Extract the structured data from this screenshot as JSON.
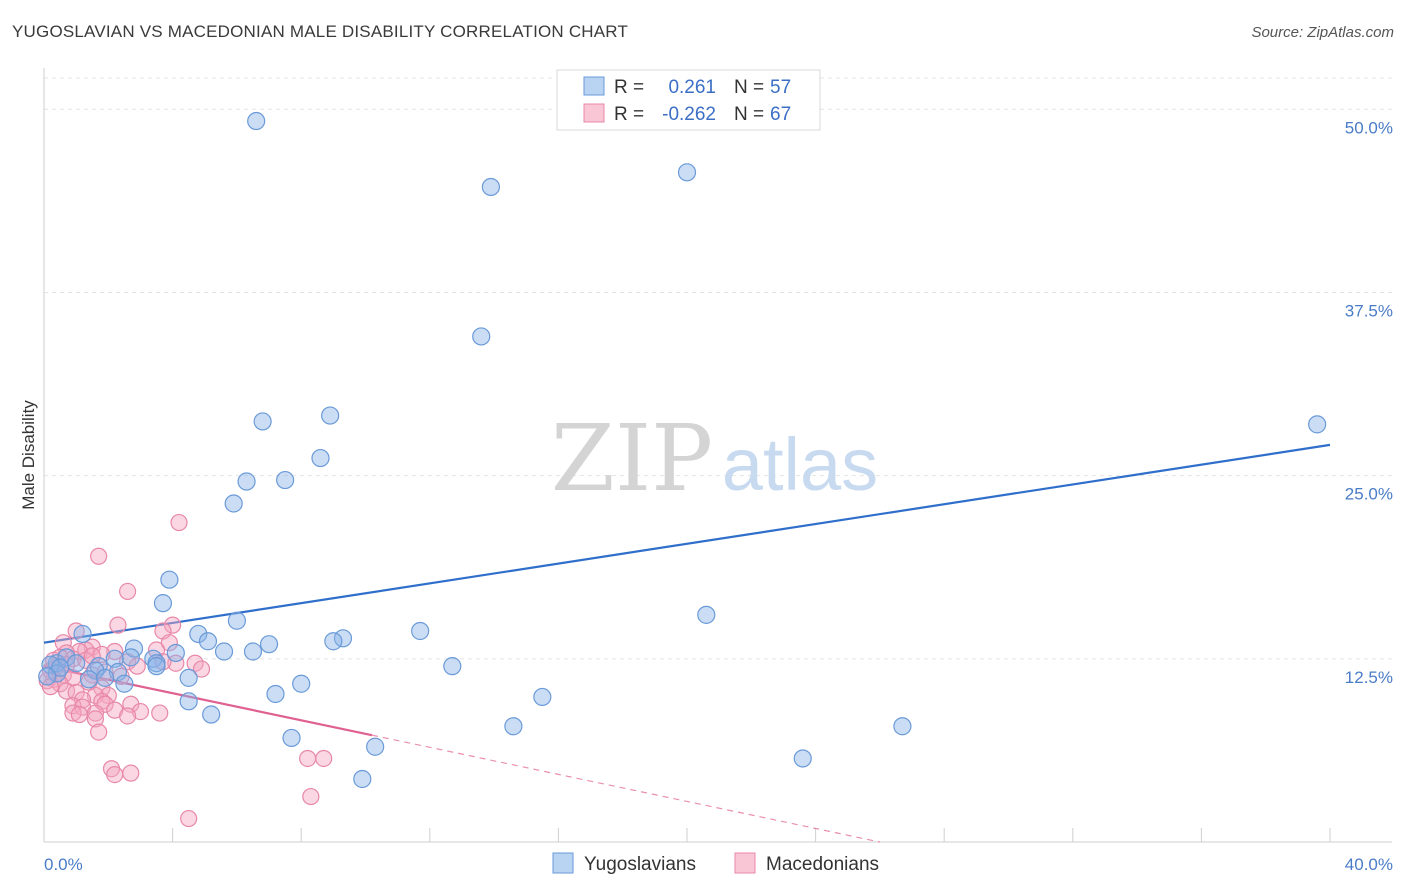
{
  "header": {
    "title": "YUGOSLAVIAN VS MACEDONIAN MALE DISABILITY CORRELATION CHART",
    "source": "Source: ZipAtlas.com"
  },
  "watermark": {
    "zip": "ZIP",
    "atlas": "atlas"
  },
  "chart_data": {
    "type": "scatter",
    "ylabel": "Male Disability",
    "xlim": [
      0,
      40
    ],
    "ylim": [
      0,
      52
    ],
    "x_ticks": [
      {
        "value": 0,
        "label": "0.0%"
      },
      {
        "value": 40,
        "label": "40.0%"
      }
    ],
    "y_ticks": [
      {
        "value": 12.5,
        "label": "12.5%"
      },
      {
        "value": 25,
        "label": "25.0%"
      },
      {
        "value": 37.5,
        "label": "37.5%"
      },
      {
        "value": 50,
        "label": "50.0%"
      }
    ],
    "grid": true,
    "legend": {
      "placement": "top-center",
      "entries": [
        {
          "r_label": "R =",
          "r_value": "0.261",
          "n_label": "N =",
          "n_value": "57"
        },
        {
          "r_label": "R =",
          "r_value": "-0.262",
          "n_label": "N =",
          "n_value": "67"
        }
      ]
    },
    "series": [
      {
        "name": "Yugoslavians",
        "color": "#8ab4e8",
        "stroke": "#6a9ad8",
        "trend_color": "#2f6fcb",
        "trend": {
          "x0": 0,
          "y0": 13.6,
          "x1": 40,
          "y1": 27.1,
          "solid_until": 40
        },
        "points": [
          [
            6.6,
            49.2
          ],
          [
            13.9,
            44.7
          ],
          [
            20.0,
            45.7
          ],
          [
            13.6,
            34.5
          ],
          [
            39.6,
            28.5
          ],
          [
            6.8,
            28.7
          ],
          [
            8.9,
            29.1
          ],
          [
            8.6,
            26.2
          ],
          [
            6.3,
            24.6
          ],
          [
            7.5,
            24.7
          ],
          [
            5.9,
            23.1
          ],
          [
            3.9,
            17.9
          ],
          [
            3.7,
            16.3
          ],
          [
            6.0,
            15.1
          ],
          [
            20.6,
            15.5
          ],
          [
            1.2,
            14.2
          ],
          [
            4.8,
            14.2
          ],
          [
            5.1,
            13.7
          ],
          [
            9.3,
            13.9
          ],
          [
            11.7,
            14.4
          ],
          [
            9.0,
            13.7
          ],
          [
            7.0,
            13.5
          ],
          [
            5.6,
            13.0
          ],
          [
            2.8,
            13.2
          ],
          [
            4.1,
            12.9
          ],
          [
            2.7,
            12.6
          ],
          [
            3.4,
            12.5
          ],
          [
            2.2,
            12.5
          ],
          [
            6.5,
            13.0
          ],
          [
            3.5,
            12.2
          ],
          [
            0.4,
            12.2
          ],
          [
            0.7,
            12.6
          ],
          [
            1.0,
            12.2
          ],
          [
            1.7,
            12.0
          ],
          [
            0.2,
            12.1
          ],
          [
            1.6,
            11.7
          ],
          [
            2.3,
            11.6
          ],
          [
            3.5,
            12.0
          ],
          [
            4.5,
            11.2
          ],
          [
            1.4,
            11.1
          ],
          [
            1.9,
            11.2
          ],
          [
            0.4,
            11.5
          ],
          [
            0.5,
            11.9
          ],
          [
            0.1,
            11.3
          ],
          [
            12.7,
            12.0
          ],
          [
            2.5,
            10.8
          ],
          [
            7.2,
            10.1
          ],
          [
            8.0,
            10.8
          ],
          [
            15.5,
            9.9
          ],
          [
            4.5,
            9.6
          ],
          [
            5.2,
            8.7
          ],
          [
            14.6,
            7.9
          ],
          [
            26.7,
            7.9
          ],
          [
            7.7,
            7.1
          ],
          [
            10.3,
            6.5
          ],
          [
            23.6,
            5.7
          ],
          [
            9.9,
            4.3
          ]
        ]
      },
      {
        "name": "Macedonians",
        "color": "#f4a6c0",
        "stroke": "#e888a8",
        "trend_color": "#e06090",
        "trend": {
          "x0": 0,
          "y0": 12.0,
          "x1": 26.0,
          "y1": 0,
          "solid_until": 10.2
        },
        "points": [
          [
            4.2,
            21.8
          ],
          [
            1.7,
            19.5
          ],
          [
            2.6,
            17.1
          ],
          [
            2.3,
            14.8
          ],
          [
            4.0,
            14.8
          ],
          [
            3.7,
            14.4
          ],
          [
            1.0,
            14.4
          ],
          [
            0.6,
            13.6
          ],
          [
            3.9,
            13.6
          ],
          [
            1.5,
            13.3
          ],
          [
            1.3,
            13.1
          ],
          [
            2.2,
            13.0
          ],
          [
            1.1,
            13.0
          ],
          [
            0.7,
            12.9
          ],
          [
            3.5,
            13.1
          ],
          [
            1.8,
            12.8
          ],
          [
            0.5,
            12.6
          ],
          [
            0.9,
            12.5
          ],
          [
            1.3,
            12.4
          ],
          [
            2.6,
            12.3
          ],
          [
            4.1,
            12.2
          ],
          [
            4.7,
            12.2
          ],
          [
            3.7,
            12.3
          ],
          [
            0.4,
            12.0
          ],
          [
            0.7,
            12.1
          ],
          [
            0.2,
            11.7
          ],
          [
            4.9,
            11.8
          ],
          [
            1.9,
            11.6
          ],
          [
            0.6,
            11.4
          ],
          [
            1.5,
            11.4
          ],
          [
            2.4,
            11.3
          ],
          [
            0.9,
            11.2
          ],
          [
            0.3,
            11.1
          ],
          [
            0.1,
            11.0
          ],
          [
            0.5,
            10.8
          ],
          [
            1.4,
            10.9
          ],
          [
            0.2,
            10.6
          ],
          [
            1.8,
            10.5
          ],
          [
            0.7,
            10.3
          ],
          [
            1.0,
            10.2
          ],
          [
            2.0,
            10.0
          ],
          [
            1.6,
            10.0
          ],
          [
            1.2,
            9.7
          ],
          [
            1.8,
            9.6
          ],
          [
            1.9,
            9.4
          ],
          [
            2.7,
            9.4
          ],
          [
            0.9,
            9.3
          ],
          [
            1.2,
            9.2
          ],
          [
            2.2,
            9.0
          ],
          [
            3.0,
            8.9
          ],
          [
            1.6,
            8.8
          ],
          [
            3.6,
            8.8
          ],
          [
            0.9,
            8.8
          ],
          [
            1.1,
            8.7
          ],
          [
            2.6,
            8.6
          ],
          [
            1.6,
            8.4
          ],
          [
            1.7,
            7.5
          ],
          [
            8.2,
            5.7
          ],
          [
            8.7,
            5.7
          ],
          [
            2.1,
            5.0
          ],
          [
            2.7,
            4.7
          ],
          [
            2.2,
            4.6
          ],
          [
            8.3,
            3.1
          ],
          [
            4.5,
            1.6
          ],
          [
            1.5,
            12.7
          ],
          [
            2.9,
            12.0
          ],
          [
            0.3,
            12.4
          ]
        ]
      }
    ]
  }
}
